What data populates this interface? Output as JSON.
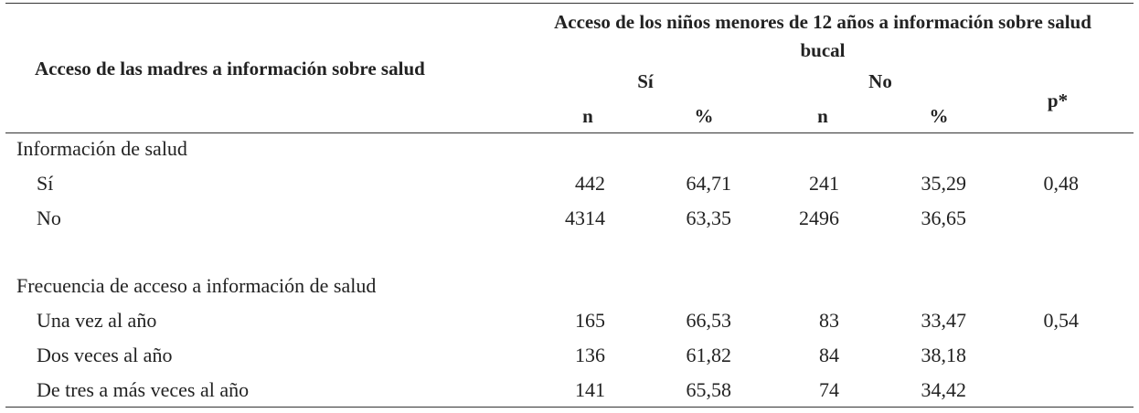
{
  "header": {
    "row_label": "Acceso de las madres a información sobre salud",
    "group": "Acceso de los niños menores de 12 años a información sobre salud bucal",
    "subgroups": [
      "Sí",
      "No"
    ],
    "columns": [
      "n",
      "%",
      "n",
      "%"
    ],
    "p": "p*"
  },
  "sections": [
    {
      "title": "Información de salud",
      "rows": [
        {
          "label": "Sí",
          "cells": [
            "442",
            "64,71",
            "241",
            "35,29"
          ],
          "p": "0,48"
        },
        {
          "label": "No",
          "cells": [
            "4314",
            "63,35",
            "2496",
            "36,65"
          ]
        }
      ]
    },
    {
      "title": "Frecuencia de acceso a información de salud",
      "rows": [
        {
          "label": "Una vez al año",
          "cells": [
            "165",
            "66,53",
            "83",
            "33,47"
          ],
          "p": "0,54"
        },
        {
          "label": "Dos veces al año",
          "cells": [
            "136",
            "61,82",
            "84",
            "38,18"
          ]
        },
        {
          "label": "De tres a más veces al año",
          "cells": [
            "141",
            "65,58",
            "74",
            "34,42"
          ]
        }
      ]
    }
  ]
}
